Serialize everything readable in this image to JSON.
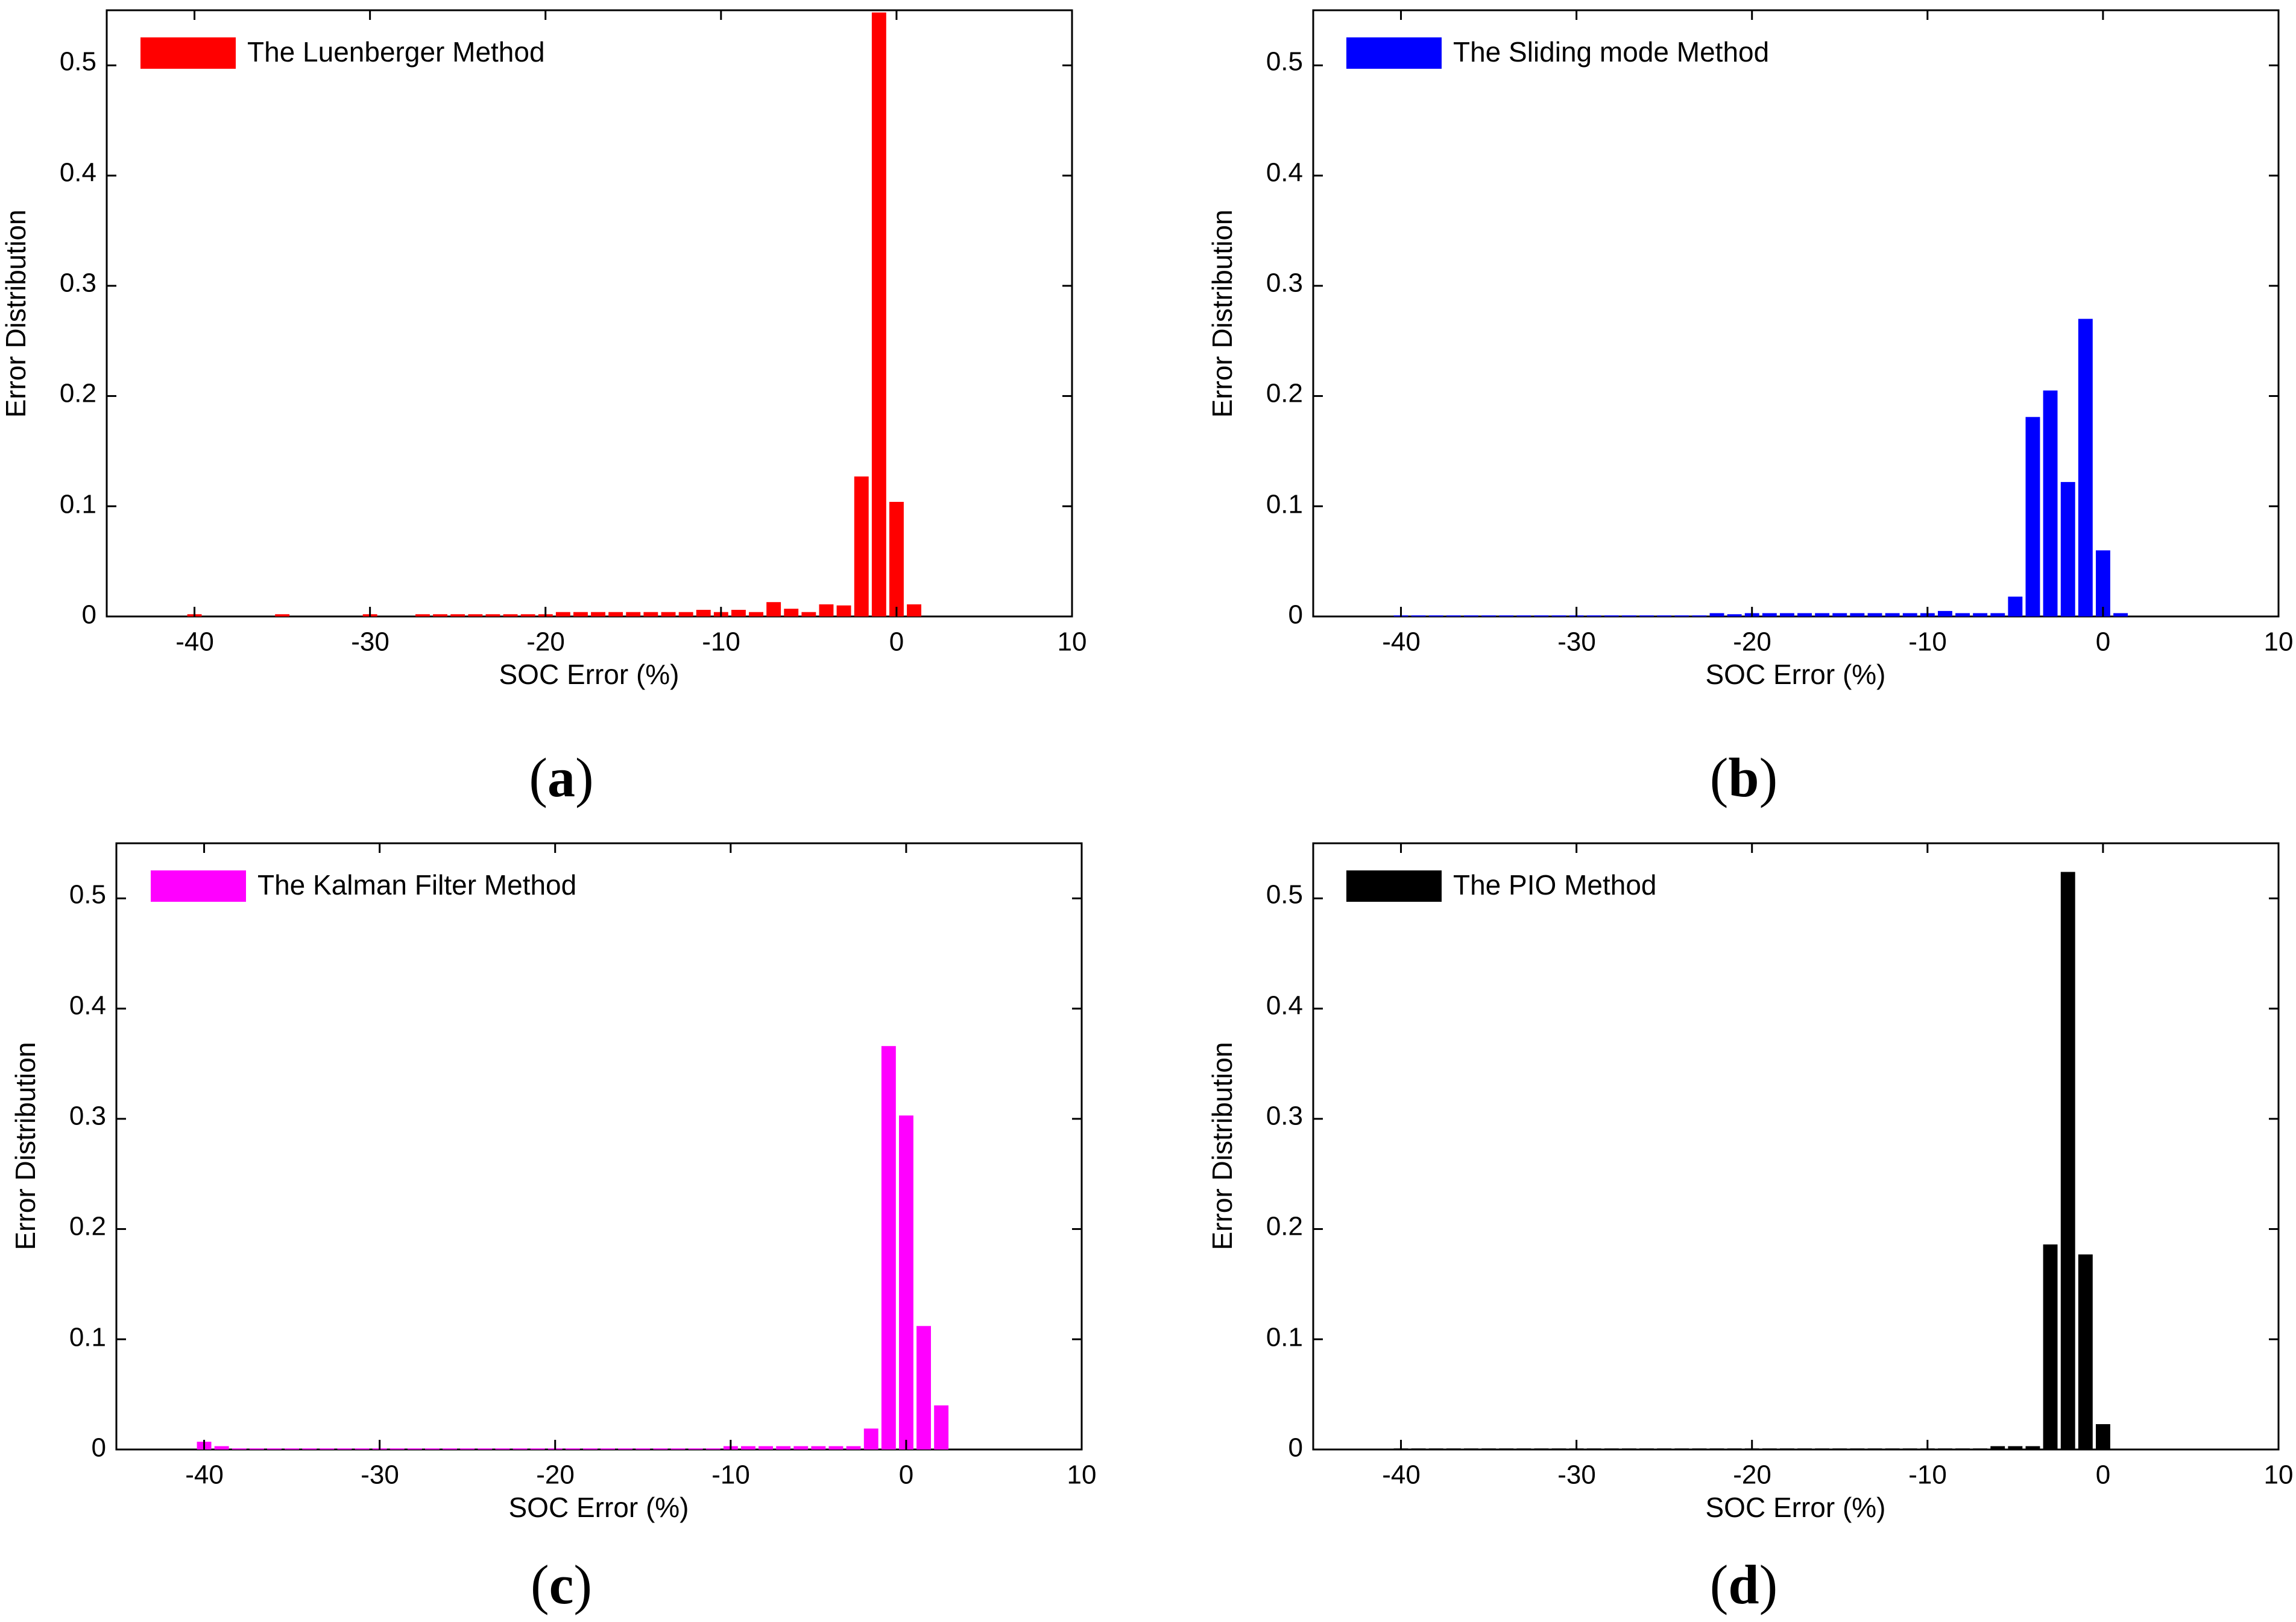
{
  "figure": {
    "panels": [
      {
        "id": "a",
        "caption_letter": "a",
        "legend_label": "The Luenberger Method",
        "color": "#ff0000"
      },
      {
        "id": "b",
        "caption_letter": "b",
        "legend_label": "The Sliding mode Method",
        "color": "#0000ff"
      },
      {
        "id": "c",
        "caption_letter": "c",
        "legend_label": "The Kalman Filter Method",
        "color": "#ff00ff"
      },
      {
        "id": "d",
        "caption_letter": "d",
        "legend_label": "The PIO Method",
        "color": "#000000"
      }
    ]
  },
  "chart_data": [
    {
      "type": "bar",
      "title": "",
      "xlabel": "SOC Error (%)",
      "ylabel": "Error Distribution",
      "xlim": [
        -45,
        10
      ],
      "ylim": [
        0,
        0.55
      ],
      "xticks": [
        -40,
        -30,
        -20,
        -10,
        0,
        10
      ],
      "yticks": [
        0,
        0.1,
        0.2,
        0.3,
        0.4,
        0.5
      ],
      "legend_position": "top-left",
      "series": [
        {
          "name": "The Luenberger Method",
          "color": "#ff0000",
          "x": [
            -40,
            -35,
            -30,
            -27,
            -26,
            -25,
            -24,
            -23,
            -22,
            -21,
            -20,
            -19,
            -18,
            -17,
            -16,
            -15,
            -14,
            -13,
            -12,
            -11,
            -10,
            -9,
            -8,
            -7,
            -6,
            -5,
            -4,
            -3,
            -2,
            -1,
            0,
            1,
            2
          ],
          "values": [
            0.002,
            0.002,
            0.002,
            0.002,
            0.002,
            0.002,
            0.002,
            0.002,
            0.002,
            0.002,
            0.002,
            0.004,
            0.004,
            0.004,
            0.004,
            0.004,
            0.004,
            0.004,
            0.004,
            0.006,
            0.004,
            0.006,
            0.004,
            0.013,
            0.007,
            0.004,
            0.011,
            0.01,
            0.127,
            0.548,
            0.104,
            0.011,
            0.0
          ]
        }
      ]
    },
    {
      "type": "bar",
      "title": "",
      "xlabel": "SOC Error (%)",
      "ylabel": "Error Distribution",
      "xlim": [
        -45,
        10
      ],
      "ylim": [
        0,
        0.55
      ],
      "xticks": [
        -40,
        -30,
        -20,
        -10,
        0,
        10
      ],
      "yticks": [
        0,
        0.1,
        0.2,
        0.3,
        0.4,
        0.5
      ],
      "legend_position": "top-left",
      "series": [
        {
          "name": "The Sliding mode Method",
          "color": "#0000ff",
          "x": [
            -40,
            -39,
            -38,
            -37,
            -36,
            -35,
            -34,
            -33,
            -32,
            -31,
            -30,
            -29,
            -28,
            -27,
            -26,
            -25,
            -24,
            -23,
            -22,
            -21,
            -20,
            -19,
            -18,
            -17,
            -16,
            -15,
            -14,
            -13,
            -12,
            -11,
            -10,
            -9,
            -8,
            -7,
            -6,
            -5,
            -4,
            -3,
            -2,
            -1,
            0,
            1,
            2,
            3
          ],
          "values": [
            0.001,
            0.001,
            0.001,
            0.001,
            0.001,
            0.001,
            0.001,
            0.001,
            0.001,
            0.001,
            0.001,
            0.001,
            0.001,
            0.001,
            0.001,
            0.001,
            0.001,
            0.001,
            0.003,
            0.002,
            0.003,
            0.003,
            0.003,
            0.003,
            0.003,
            0.003,
            0.003,
            0.003,
            0.003,
            0.003,
            0.003,
            0.005,
            0.003,
            0.003,
            0.003,
            0.018,
            0.181,
            0.205,
            0.122,
            0.27,
            0.06,
            0.003,
            0.0,
            0.0
          ]
        }
      ]
    },
    {
      "type": "bar",
      "title": "",
      "xlabel": "SOC Error (%)",
      "ylabel": "Error Distribution",
      "xlim": [
        -45,
        10
      ],
      "ylim": [
        0,
        0.55
      ],
      "xticks": [
        -40,
        -30,
        -20,
        -10,
        0,
        10
      ],
      "yticks": [
        0,
        0.1,
        0.2,
        0.3,
        0.4,
        0.5
      ],
      "legend_position": "top-left",
      "series": [
        {
          "name": "The Kalman Filter Method",
          "color": "#ff00ff",
          "x": [
            -40,
            -39,
            -38,
            -37,
            -36,
            -35,
            -34,
            -33,
            -32,
            -31,
            -30,
            -29,
            -28,
            -27,
            -26,
            -25,
            -24,
            -23,
            -22,
            -21,
            -20,
            -19,
            -18,
            -17,
            -16,
            -15,
            -14,
            -13,
            -12,
            -11,
            -10,
            -9,
            -8,
            -7,
            -6,
            -5,
            -4,
            -3,
            -2,
            -1,
            0,
            1,
            2,
            3
          ],
          "values": [
            0.007,
            0.003,
            0.001,
            0.001,
            0.001,
            0.001,
            0.001,
            0.001,
            0.001,
            0.001,
            0.001,
            0.001,
            0.001,
            0.001,
            0.001,
            0.001,
            0.001,
            0.001,
            0.001,
            0.001,
            0.001,
            0.001,
            0.001,
            0.001,
            0.001,
            0.001,
            0.001,
            0.001,
            0.001,
            0.001,
            0.003,
            0.003,
            0.003,
            0.003,
            0.003,
            0.003,
            0.003,
            0.003,
            0.019,
            0.366,
            0.303,
            0.112,
            0.04,
            0.0
          ]
        }
      ]
    },
    {
      "type": "bar",
      "title": "",
      "xlabel": "SOC Error (%)",
      "ylabel": "Error Distribution",
      "xlim": [
        -45,
        10
      ],
      "ylim": [
        0,
        0.55
      ],
      "xticks": [
        -40,
        -30,
        -20,
        -10,
        0,
        10
      ],
      "yticks": [
        0,
        0.1,
        0.2,
        0.3,
        0.4,
        0.5
      ],
      "legend_position": "top-left",
      "series": [
        {
          "name": "The PIO Method",
          "color": "#000000",
          "x": [
            -40,
            -39,
            -38,
            -37,
            -36,
            -35,
            -34,
            -33,
            -32,
            -31,
            -30,
            -29,
            -28,
            -27,
            -26,
            -25,
            -24,
            -23,
            -22,
            -21,
            -20,
            -19,
            -18,
            -17,
            -16,
            -15,
            -14,
            -13,
            -12,
            -11,
            -10,
            -9,
            -8,
            -7,
            -6,
            -5,
            -4,
            -3,
            -2,
            -1,
            0,
            1,
            2
          ],
          "values": [
            0.001,
            0.001,
            0.001,
            0.001,
            0.001,
            0.001,
            0.001,
            0.001,
            0.001,
            0.001,
            0.001,
            0.001,
            0.001,
            0.001,
            0.001,
            0.001,
            0.001,
            0.001,
            0.001,
            0.001,
            0.001,
            0.001,
            0.001,
            0.001,
            0.001,
            0.001,
            0.001,
            0.001,
            0.001,
            0.001,
            0.001,
            0.001,
            0.001,
            0.001,
            0.003,
            0.003,
            0.003,
            0.186,
            0.524,
            0.177,
            0.023,
            0.0,
            0.0
          ]
        }
      ]
    }
  ]
}
